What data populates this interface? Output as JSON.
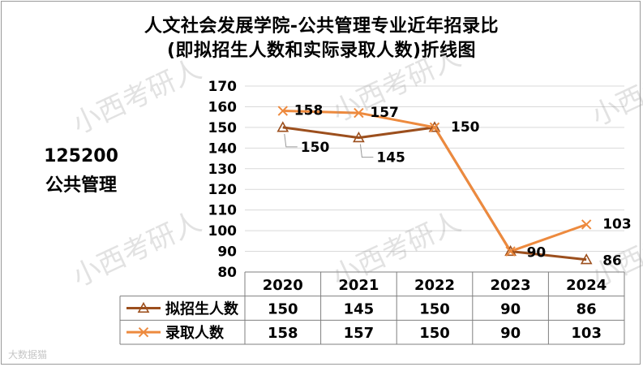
{
  "title_line1": "人文社会发展学院-公共管理专业近年招录比",
  "title_line2": "(即拟招生人数和实际录取人数)折线图",
  "side_code": "125200",
  "side_name": "公共管理",
  "watermark": "小西考研人",
  "corner_logo": "大数据猫",
  "colors": {
    "plan": "#9c4f1d",
    "admitted": "#ed8a3e",
    "grid": "#d9d9d9",
    "border": "#7f7f7f"
  },
  "chart_data": {
    "type": "line",
    "categories": [
      "2020",
      "2021",
      "2022",
      "2023",
      "2024"
    ],
    "ylim": [
      80,
      170
    ],
    "yticks": [
      170,
      160,
      150,
      140,
      130,
      120,
      110,
      100,
      90,
      80
    ],
    "grid": true,
    "series": [
      {
        "name": "拟招生人数",
        "marker": "triangle",
        "values": [
          150,
          145,
          150,
          90,
          86
        ],
        "labels": [
          "150",
          "145",
          "150",
          "90",
          "86"
        ]
      },
      {
        "name": "录取人数",
        "marker": "x",
        "values": [
          158,
          157,
          150,
          90,
          103
        ],
        "labels": [
          "158",
          "157",
          "",
          "",
          "103"
        ]
      }
    ]
  }
}
